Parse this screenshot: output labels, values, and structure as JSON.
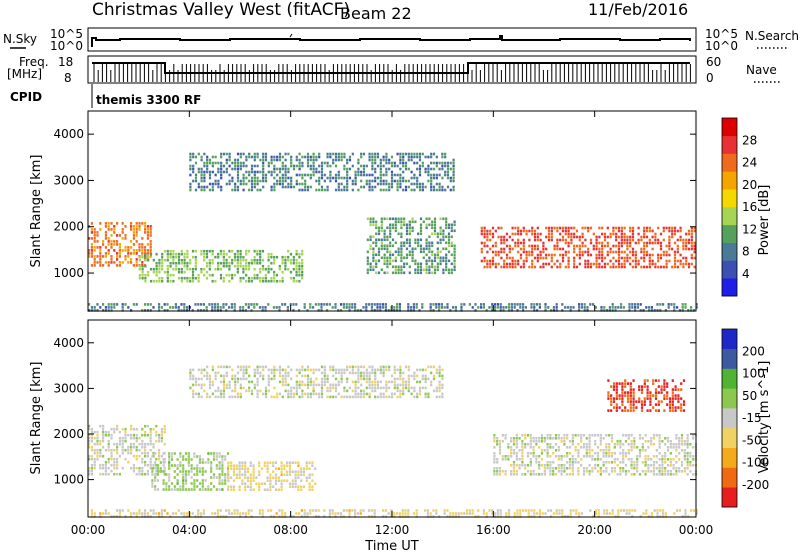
{
  "header": {
    "station": "Christmas Valley West (fitACF)",
    "beam": "Beam 22",
    "date": "11/Feb/2016"
  },
  "aux_panels": {
    "nsky_label": "N.Sky",
    "nsky_ticks": [
      "10^5",
      "10^0"
    ],
    "nsearch_label": "N.Search",
    "nsearch_ticks": [
      "10^5",
      "10^0"
    ],
    "freq_label": "Freq.",
    "freq_units": "[MHz]",
    "freq_ticks": [
      "18",
      "8"
    ],
    "nave_label": "Nave",
    "nave_ticks": [
      "60",
      "0"
    ],
    "cpid_label": "CPID",
    "cpid_value": "themis 3300 RF"
  },
  "colors": {
    "power_scale": [
      "#1e1ee6",
      "#3c50b4",
      "#4a7a96",
      "#55a05a",
      "#a6d455",
      "#f4d800",
      "#f5a500",
      "#f06a1e",
      "#e63232",
      "#dd0000"
    ],
    "velocity_scale": [
      "#e61e1e",
      "#f06a14",
      "#f5aa1e",
      "#f0d264",
      "#c8c8c8",
      "#8cc850",
      "#50b432",
      "#3c5aa0",
      "#1e28c8"
    ]
  },
  "chart_data": [
    {
      "type": "heatmap",
      "panel": "power",
      "ylabel": "Slant Range [km]",
      "xlabel": "Time UT",
      "x_ticks": [
        "00:00",
        "04:00",
        "08:00",
        "12:00",
        "16:00",
        "20:00",
        "00:00"
      ],
      "xlim_hours": [
        0,
        24
      ],
      "y_ticks": [
        1000,
        2000,
        3000,
        4000
      ],
      "ylim_km": [
        180,
        4500
      ],
      "colorbar": {
        "label": "Power [dB]",
        "ticks": [
          28,
          24,
          20,
          16,
          12,
          8,
          4
        ],
        "range": [
          0,
          30
        ]
      },
      "echo_regions": [
        {
          "t_start": 0.0,
          "t_end": 2.5,
          "range_km": [
            1150,
            2100
          ],
          "mean_value": 22
        },
        {
          "t_start": 2.0,
          "t_end": 8.5,
          "range_km": [
            800,
            1500
          ],
          "mean_value": 12
        },
        {
          "t_start": 4.0,
          "t_end": 14.5,
          "range_km": [
            2800,
            3600
          ],
          "mean_value": 8
        },
        {
          "t_start": 11.0,
          "t_end": 14.5,
          "range_km": [
            1000,
            2200
          ],
          "mean_value": 10
        },
        {
          "t_start": 15.5,
          "t_end": 24.0,
          "range_km": [
            1100,
            2000
          ],
          "mean_value": 24
        },
        {
          "t_start": 0.0,
          "t_end": 24.0,
          "range_km": [
            200,
            350
          ],
          "mean_value": 8
        }
      ]
    },
    {
      "type": "heatmap",
      "panel": "velocity",
      "ylabel": "Slant Range [km]",
      "xlabel": "Time UT",
      "x_ticks": [
        "00:00",
        "04:00",
        "08:00",
        "12:00",
        "16:00",
        "20:00",
        "00:00"
      ],
      "xlim_hours": [
        0,
        24
      ],
      "y_ticks": [
        1000,
        2000,
        3000,
        4000
      ],
      "ylim_km": [
        180,
        4500
      ],
      "colorbar": {
        "label": "Velocity [m s^-1]",
        "ticks": [
          200,
          100,
          50,
          -15,
          -50,
          -100,
          -200
        ],
        "range": [
          -250,
          250
        ]
      },
      "echo_regions": [
        {
          "t_start": 0.0,
          "t_end": 3.0,
          "range_km": [
            1100,
            2200
          ],
          "mean_value": 0
        },
        {
          "t_start": 2.5,
          "t_end": 5.5,
          "range_km": [
            800,
            1600
          ],
          "mean_value": 40
        },
        {
          "t_start": 5.5,
          "t_end": 9.0,
          "range_km": [
            800,
            1400
          ],
          "mean_value": -40
        },
        {
          "t_start": 4.0,
          "t_end": 14.0,
          "range_km": [
            2800,
            3500
          ],
          "mean_value": 0
        },
        {
          "t_start": 16.0,
          "t_end": 24.0,
          "range_km": [
            1100,
            2000
          ],
          "mean_value": 0
        },
        {
          "t_start": 20.5,
          "t_end": 23.5,
          "range_km": [
            2500,
            3200
          ],
          "mean_value": -200
        },
        {
          "t_start": 0.0,
          "t_end": 24.0,
          "range_km": [
            200,
            350
          ],
          "mean_value": -40
        }
      ]
    }
  ]
}
